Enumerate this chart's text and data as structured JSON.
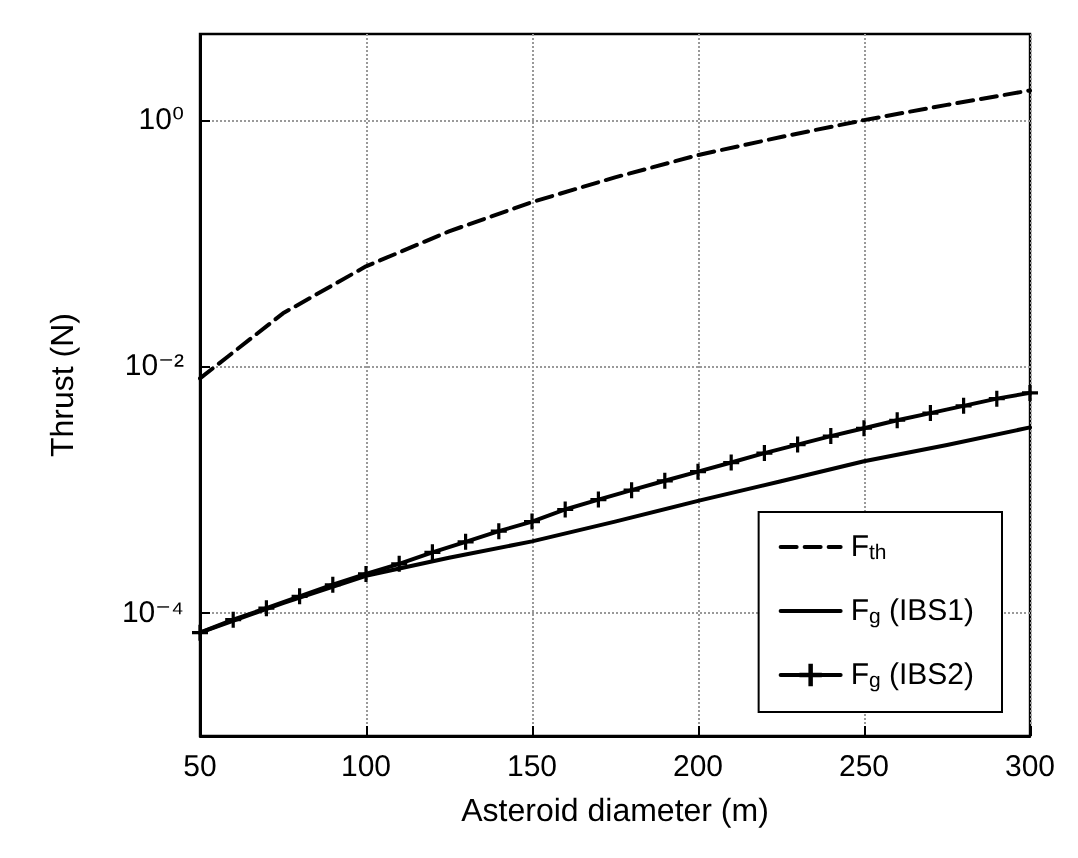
{
  "chart_data": {
    "type": "line",
    "xlabel": "Asteroid diameter (m)",
    "ylabel": "Thrust (N)",
    "log": "y",
    "xlim": [
      50,
      300
    ],
    "xticks": [
      50,
      100,
      150,
      200,
      250,
      300
    ],
    "ylim": [
      1e-05,
      5
    ],
    "yticks": [
      {
        "value": 1,
        "label": "10⁰"
      },
      {
        "value": 0.01,
        "label": "10⁻²"
      },
      {
        "value": 0.0001,
        "label": "10⁻⁴"
      }
    ],
    "grid": true,
    "legend": "bottom right",
    "series": [
      {
        "name": "F$_{th}$",
        "color": "#000000",
        "line_style": "dashed",
        "marker": "none",
        "x": [
          50,
          75,
          100,
          125,
          150,
          175,
          200,
          225,
          250,
          275,
          300
        ],
        "values": [
          0.008,
          0.027,
          0.065,
          0.125,
          0.216,
          0.343,
          0.52,
          0.729,
          1.0,
          1.33,
          1.74
        ]
      },
      {
        "name": "F$_{g}$ (IBS1)",
        "color": "#000000",
        "line_style": "solid",
        "marker": "none",
        "x": [
          50,
          75,
          100,
          125,
          150,
          175,
          200,
          225,
          250,
          275,
          300
        ],
        "values": [
          6.9e-05,
          0.00012,
          0.0002,
          0.00028,
          0.00038,
          0.00055,
          0.00081,
          0.00117,
          0.0017,
          0.0023,
          0.0032
        ]
      },
      {
        "name": "F$_{g}$ (IBS2)",
        "color": "#000000",
        "line_style": "solid",
        "marker": "cross",
        "x": [
          50,
          60,
          70,
          80,
          90,
          100,
          110,
          120,
          130,
          140,
          150,
          160,
          170,
          180,
          190,
          200,
          210,
          220,
          230,
          240,
          250,
          260,
          270,
          280,
          290,
          300
        ],
        "values": [
          6.9e-05,
          8.8e-05,
          0.000109,
          0.000136,
          0.000169,
          0.000207,
          0.00025,
          0.00031,
          0.000377,
          0.00046,
          0.00055,
          0.00069,
          0.00083,
          0.00099,
          0.00118,
          0.0014,
          0.00166,
          0.00198,
          0.00232,
          0.00272,
          0.00315,
          0.00366,
          0.00418,
          0.00479,
          0.00548,
          0.0061
        ]
      }
    ]
  }
}
